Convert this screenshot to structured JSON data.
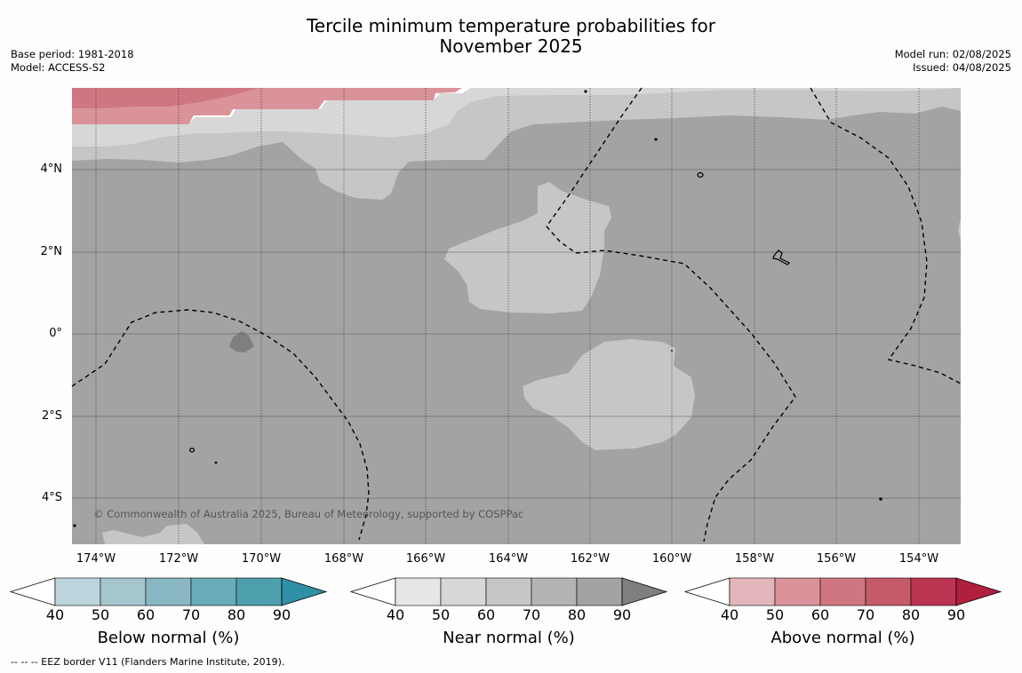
{
  "title_line1": "Tercile minimum temperature probabilities for",
  "title_line2": "November 2025",
  "meta_left": {
    "base_period": "Base period: 1981-2018",
    "model": "Model: ACCESS-S2"
  },
  "meta_right": {
    "model_run": "Model run: 02/08/2025",
    "issued": "Issued: 04/08/2025"
  },
  "copyright": "© Commonwealth of Australia 2025, Bureau of Meteorology, supported by COSPPac",
  "lat_ticks": [
    "4°N",
    "2°N",
    "0°",
    "2°S",
    "4°S"
  ],
  "lon_ticks": [
    "174°W",
    "172°W",
    "170°W",
    "168°W",
    "166°W",
    "164°W",
    "162°W",
    "160°W",
    "158°W",
    "156°W",
    "154°W"
  ],
  "colorbars": [
    {
      "label": "Below normal (%)",
      "ticks": [
        "40",
        "50",
        "60",
        "70",
        "80",
        "90"
      ],
      "colors": [
        "#ffffff",
        "#bcd4db",
        "#a5c6cc",
        "#88b7c3",
        "#6aabb8",
        "#4d9fad",
        "#2f8fa5"
      ]
    },
    {
      "label": "Near normal (%)",
      "ticks": [
        "40",
        "50",
        "60",
        "70",
        "80",
        "90"
      ],
      "colors": [
        "#ffffff",
        "#e6e6e6",
        "#d7d7d7",
        "#c6c6c6",
        "#b4b4b4",
        "#a3a3a3",
        "#7f7f7f"
      ]
    },
    {
      "label": "Above normal (%)",
      "ticks": [
        "40",
        "50",
        "60",
        "70",
        "80",
        "90"
      ],
      "colors": [
        "#ffffff",
        "#e3b6bc",
        "#da939a",
        "#cf7780",
        "#c55a69",
        "#bb3452",
        "#b01f3d"
      ]
    }
  ],
  "footer": "--  --  -- EEZ border V11 (Flanders Marine Institute, 2019)."
}
